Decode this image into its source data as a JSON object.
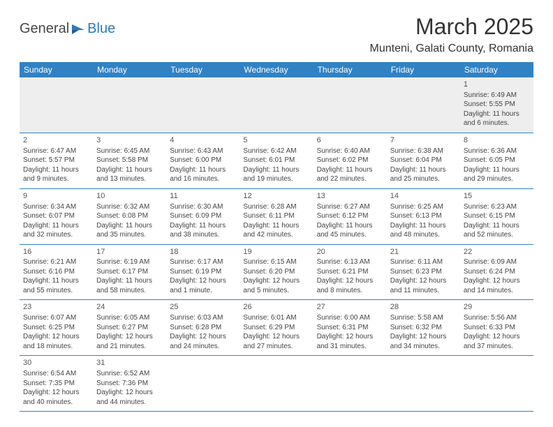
{
  "logo": {
    "part1": "General",
    "part2": "Blue"
  },
  "title": "March 2025",
  "location": "Munteni, Galati County, Romania",
  "colors": {
    "header_bg": "#3082c4",
    "header_text": "#ffffff",
    "border": "#3082c4",
    "body_text": "#444444",
    "title_text": "#333333",
    "logo_gray": "#44474a",
    "logo_blue": "#2b7bbf",
    "empty_bg": "#eeeeee",
    "page_bg": "#ffffff"
  },
  "typography": {
    "title_fontsize": 32,
    "location_fontsize": 16,
    "header_fontsize": 12,
    "cell_fontsize": 10,
    "daynum_fontsize": 11
  },
  "day_headers": [
    "Sunday",
    "Monday",
    "Tuesday",
    "Wednesday",
    "Thursday",
    "Friday",
    "Saturday"
  ],
  "weeks": [
    [
      null,
      null,
      null,
      null,
      null,
      null,
      {
        "n": "1",
        "sr": "Sunrise: 6:49 AM",
        "ss": "Sunset: 5:55 PM",
        "d1": "Daylight: 11 hours",
        "d2": "and 6 minutes."
      }
    ],
    [
      {
        "n": "2",
        "sr": "Sunrise: 6:47 AM",
        "ss": "Sunset: 5:57 PM",
        "d1": "Daylight: 11 hours",
        "d2": "and 9 minutes."
      },
      {
        "n": "3",
        "sr": "Sunrise: 6:45 AM",
        "ss": "Sunset: 5:58 PM",
        "d1": "Daylight: 11 hours",
        "d2": "and 13 minutes."
      },
      {
        "n": "4",
        "sr": "Sunrise: 6:43 AM",
        "ss": "Sunset: 6:00 PM",
        "d1": "Daylight: 11 hours",
        "d2": "and 16 minutes."
      },
      {
        "n": "5",
        "sr": "Sunrise: 6:42 AM",
        "ss": "Sunset: 6:01 PM",
        "d1": "Daylight: 11 hours",
        "d2": "and 19 minutes."
      },
      {
        "n": "6",
        "sr": "Sunrise: 6:40 AM",
        "ss": "Sunset: 6:02 PM",
        "d1": "Daylight: 11 hours",
        "d2": "and 22 minutes."
      },
      {
        "n": "7",
        "sr": "Sunrise: 6:38 AM",
        "ss": "Sunset: 6:04 PM",
        "d1": "Daylight: 11 hours",
        "d2": "and 25 minutes."
      },
      {
        "n": "8",
        "sr": "Sunrise: 6:36 AM",
        "ss": "Sunset: 6:05 PM",
        "d1": "Daylight: 11 hours",
        "d2": "and 29 minutes."
      }
    ],
    [
      {
        "n": "9",
        "sr": "Sunrise: 6:34 AM",
        "ss": "Sunset: 6:07 PM",
        "d1": "Daylight: 11 hours",
        "d2": "and 32 minutes."
      },
      {
        "n": "10",
        "sr": "Sunrise: 6:32 AM",
        "ss": "Sunset: 6:08 PM",
        "d1": "Daylight: 11 hours",
        "d2": "and 35 minutes."
      },
      {
        "n": "11",
        "sr": "Sunrise: 6:30 AM",
        "ss": "Sunset: 6:09 PM",
        "d1": "Daylight: 11 hours",
        "d2": "and 38 minutes."
      },
      {
        "n": "12",
        "sr": "Sunrise: 6:28 AM",
        "ss": "Sunset: 6:11 PM",
        "d1": "Daylight: 11 hours",
        "d2": "and 42 minutes."
      },
      {
        "n": "13",
        "sr": "Sunrise: 6:27 AM",
        "ss": "Sunset: 6:12 PM",
        "d1": "Daylight: 11 hours",
        "d2": "and 45 minutes."
      },
      {
        "n": "14",
        "sr": "Sunrise: 6:25 AM",
        "ss": "Sunset: 6:13 PM",
        "d1": "Daylight: 11 hours",
        "d2": "and 48 minutes."
      },
      {
        "n": "15",
        "sr": "Sunrise: 6:23 AM",
        "ss": "Sunset: 6:15 PM",
        "d1": "Daylight: 11 hours",
        "d2": "and 52 minutes."
      }
    ],
    [
      {
        "n": "16",
        "sr": "Sunrise: 6:21 AM",
        "ss": "Sunset: 6:16 PM",
        "d1": "Daylight: 11 hours",
        "d2": "and 55 minutes."
      },
      {
        "n": "17",
        "sr": "Sunrise: 6:19 AM",
        "ss": "Sunset: 6:17 PM",
        "d1": "Daylight: 11 hours",
        "d2": "and 58 minutes."
      },
      {
        "n": "18",
        "sr": "Sunrise: 6:17 AM",
        "ss": "Sunset: 6:19 PM",
        "d1": "Daylight: 12 hours",
        "d2": "and 1 minute."
      },
      {
        "n": "19",
        "sr": "Sunrise: 6:15 AM",
        "ss": "Sunset: 6:20 PM",
        "d1": "Daylight: 12 hours",
        "d2": "and 5 minutes."
      },
      {
        "n": "20",
        "sr": "Sunrise: 6:13 AM",
        "ss": "Sunset: 6:21 PM",
        "d1": "Daylight: 12 hours",
        "d2": "and 8 minutes."
      },
      {
        "n": "21",
        "sr": "Sunrise: 6:11 AM",
        "ss": "Sunset: 6:23 PM",
        "d1": "Daylight: 12 hours",
        "d2": "and 11 minutes."
      },
      {
        "n": "22",
        "sr": "Sunrise: 6:09 AM",
        "ss": "Sunset: 6:24 PM",
        "d1": "Daylight: 12 hours",
        "d2": "and 14 minutes."
      }
    ],
    [
      {
        "n": "23",
        "sr": "Sunrise: 6:07 AM",
        "ss": "Sunset: 6:25 PM",
        "d1": "Daylight: 12 hours",
        "d2": "and 18 minutes."
      },
      {
        "n": "24",
        "sr": "Sunrise: 6:05 AM",
        "ss": "Sunset: 6:27 PM",
        "d1": "Daylight: 12 hours",
        "d2": "and 21 minutes."
      },
      {
        "n": "25",
        "sr": "Sunrise: 6:03 AM",
        "ss": "Sunset: 6:28 PM",
        "d1": "Daylight: 12 hours",
        "d2": "and 24 minutes."
      },
      {
        "n": "26",
        "sr": "Sunrise: 6:01 AM",
        "ss": "Sunset: 6:29 PM",
        "d1": "Daylight: 12 hours",
        "d2": "and 27 minutes."
      },
      {
        "n": "27",
        "sr": "Sunrise: 6:00 AM",
        "ss": "Sunset: 6:31 PM",
        "d1": "Daylight: 12 hours",
        "d2": "and 31 minutes."
      },
      {
        "n": "28",
        "sr": "Sunrise: 5:58 AM",
        "ss": "Sunset: 6:32 PM",
        "d1": "Daylight: 12 hours",
        "d2": "and 34 minutes."
      },
      {
        "n": "29",
        "sr": "Sunrise: 5:56 AM",
        "ss": "Sunset: 6:33 PM",
        "d1": "Daylight: 12 hours",
        "d2": "and 37 minutes."
      }
    ],
    [
      {
        "n": "30",
        "sr": "Sunrise: 6:54 AM",
        "ss": "Sunset: 7:35 PM",
        "d1": "Daylight: 12 hours",
        "d2": "and 40 minutes."
      },
      {
        "n": "31",
        "sr": "Sunrise: 6:52 AM",
        "ss": "Sunset: 7:36 PM",
        "d1": "Daylight: 12 hours",
        "d2": "and 44 minutes."
      },
      null,
      null,
      null,
      null,
      null
    ]
  ]
}
